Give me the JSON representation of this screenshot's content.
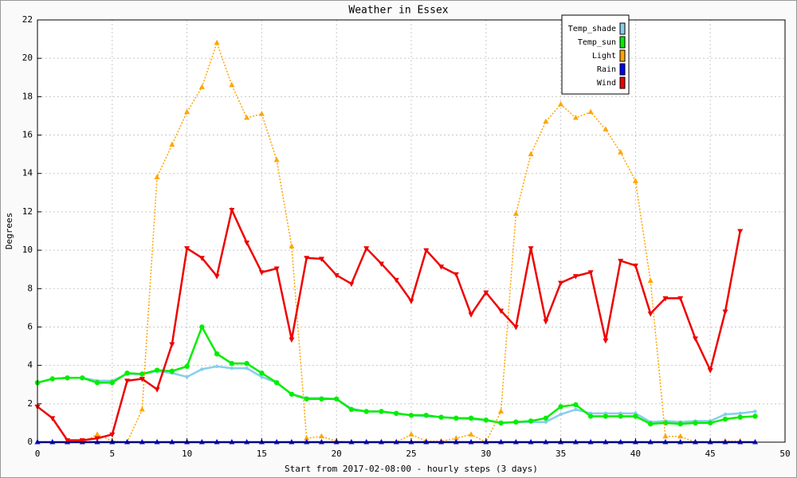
{
  "chart_data": {
    "type": "line",
    "title": "Weather in Essex",
    "x_label": "Start from 2017-02-08:00 - hourly steps (3 days)",
    "y_label": "Degrees",
    "x": [
      0,
      1,
      2,
      3,
      4,
      5,
      6,
      7,
      8,
      9,
      10,
      11,
      12,
      13,
      14,
      15,
      16,
      17,
      18,
      19,
      20,
      21,
      22,
      23,
      24,
      25,
      26,
      27,
      28,
      29,
      30,
      31,
      32,
      33,
      34,
      35,
      36,
      37,
      38,
      39,
      40,
      41,
      42,
      43,
      44,
      45,
      46,
      47,
      48
    ],
    "xlim": [
      0,
      50
    ],
    "xticks": [
      0,
      5,
      10,
      15,
      20,
      25,
      30,
      35,
      40,
      45,
      50
    ],
    "ylim": [
      0,
      22
    ],
    "yticks": [
      0,
      2,
      4,
      6,
      8,
      10,
      12,
      14,
      16,
      18,
      20,
      22
    ],
    "grid": true,
    "legend": "top-right",
    "series": [
      {
        "name": "Temp_shade",
        "color": "#87ceeb",
        "marker": "dot",
        "values": [
          3.1,
          3.3,
          3.35,
          3.35,
          3.2,
          3.2,
          3.55,
          3.55,
          3.7,
          3.6,
          3.4,
          3.8,
          3.95,
          3.85,
          3.85,
          3.4,
          3.1,
          2.5,
          2.3,
          2.3,
          2.25,
          1.75,
          1.6,
          1.6,
          1.5,
          1.4,
          1.35,
          1.3,
          1.25,
          1.2,
          1.15,
          1.0,
          1.05,
          1.05,
          1.05,
          1.45,
          1.7,
          1.5,
          1.5,
          1.5,
          1.5,
          1.05,
          1.1,
          1.05,
          1.1,
          1.1,
          1.45,
          1.5,
          1.6
        ]
      },
      {
        "name": "Temp_sun",
        "color": "#00ee00",
        "marker": "circle",
        "values": [
          3.1,
          3.3,
          3.35,
          3.35,
          3.1,
          3.1,
          3.6,
          3.55,
          3.75,
          3.7,
          3.95,
          6.0,
          4.6,
          4.1,
          4.1,
          3.6,
          3.1,
          2.5,
          2.25,
          2.25,
          2.25,
          1.7,
          1.6,
          1.6,
          1.5,
          1.4,
          1.4,
          1.3,
          1.25,
          1.25,
          1.15,
          1.0,
          1.05,
          1.1,
          1.25,
          1.85,
          1.95,
          1.35,
          1.35,
          1.35,
          1.35,
          0.95,
          1.0,
          0.95,
          1.0,
          1.0,
          1.2,
          1.3,
          1.35
        ]
      },
      {
        "name": "Light",
        "color": "#ffa500",
        "marker": "triangle-up",
        "dashed": true,
        "values": [
          0,
          0,
          0,
          0,
          0.4,
          0.05,
          0,
          1.7,
          13.8,
          15.5,
          17.2,
          18.5,
          20.8,
          18.6,
          16.9,
          17.1,
          14.7,
          10.2,
          0.2,
          0.3,
          0.05,
          0,
          0,
          0,
          0,
          0.4,
          0.05,
          0.05,
          0.2,
          0.4,
          0,
          1.6,
          11.9,
          15,
          16.7,
          17.6,
          16.9,
          17.2,
          16.3,
          15.1,
          13.6,
          8.4,
          0.3,
          0.3,
          0,
          0,
          0.05,
          0.05,
          null
        ]
      },
      {
        "name": "Rain",
        "color": "#0000ff",
        "marker": "triangle-up",
        "values": [
          0,
          0,
          0,
          0,
          0,
          0,
          0,
          0,
          0,
          0,
          0,
          0,
          0,
          0,
          0,
          0,
          0,
          0,
          0,
          0,
          0,
          0,
          0,
          0,
          0,
          0,
          0,
          0,
          0,
          0,
          0,
          0,
          0,
          0,
          0,
          0,
          0,
          0,
          0,
          0,
          0,
          0,
          0,
          0,
          0,
          0,
          0,
          0,
          0
        ]
      },
      {
        "name": "Wind",
        "color": "#ee0000",
        "marker": "triangle-down",
        "values": [
          1.85,
          1.25,
          0.1,
          0.1,
          0.2,
          0.4,
          3.2,
          3.3,
          2.75,
          5.1,
          10.1,
          9.6,
          8.65,
          12.1,
          10.4,
          8.85,
          9.05,
          5.35,
          9.6,
          9.55,
          8.7,
          8.25,
          10.1,
          9.3,
          8.45,
          7.35,
          10.0,
          9.15,
          8.75,
          6.65,
          7.8,
          6.85,
          6.0,
          10.1,
          6.3,
          8.3,
          8.65,
          8.85,
          5.3,
          9.45,
          9.2,
          6.7,
          7.5,
          7.5,
          5.4,
          3.75,
          6.8,
          11.0,
          null
        ]
      }
    ]
  }
}
